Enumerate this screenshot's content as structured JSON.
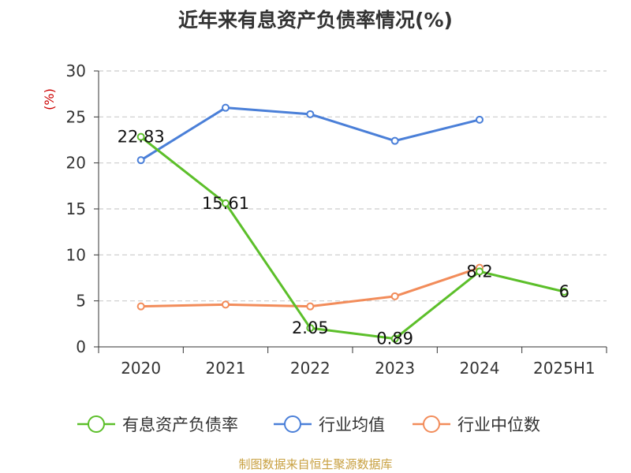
{
  "title": "近年来有息资产负债率情况(%)",
  "source": "制图数据来自恒生聚源数据库",
  "colors": {
    "title": "#333333",
    "unit": "#cc0000",
    "source": "#c8a040",
    "grid": "#cccccc",
    "axis": "#333333"
  },
  "chart_data": {
    "type": "line",
    "categories": [
      "2020",
      "2021",
      "2022",
      "2023",
      "2024",
      "2025H1"
    ],
    "yunit": "(%)",
    "ylim": [
      0,
      30
    ],
    "yticks": [
      0,
      5,
      10,
      15,
      20,
      25,
      30
    ],
    "grid": true,
    "legend_position": "bottom",
    "series": [
      {
        "name": "有息资产负债率",
        "color": "#5cbf2a",
        "values": [
          22.83,
          15.61,
          2.05,
          0.89,
          8.2,
          6
        ],
        "labels": [
          "22.83",
          "15.61",
          "2.05",
          "0.89",
          "8.2",
          "6"
        ]
      },
      {
        "name": "行业均值",
        "color": "#4a7fd8",
        "values": [
          20.3,
          26.0,
          25.3,
          22.4,
          24.7,
          null
        ]
      },
      {
        "name": "行业中位数",
        "color": "#f28c5a",
        "values": [
          4.4,
          4.6,
          4.4,
          5.5,
          8.6,
          null
        ]
      }
    ]
  }
}
